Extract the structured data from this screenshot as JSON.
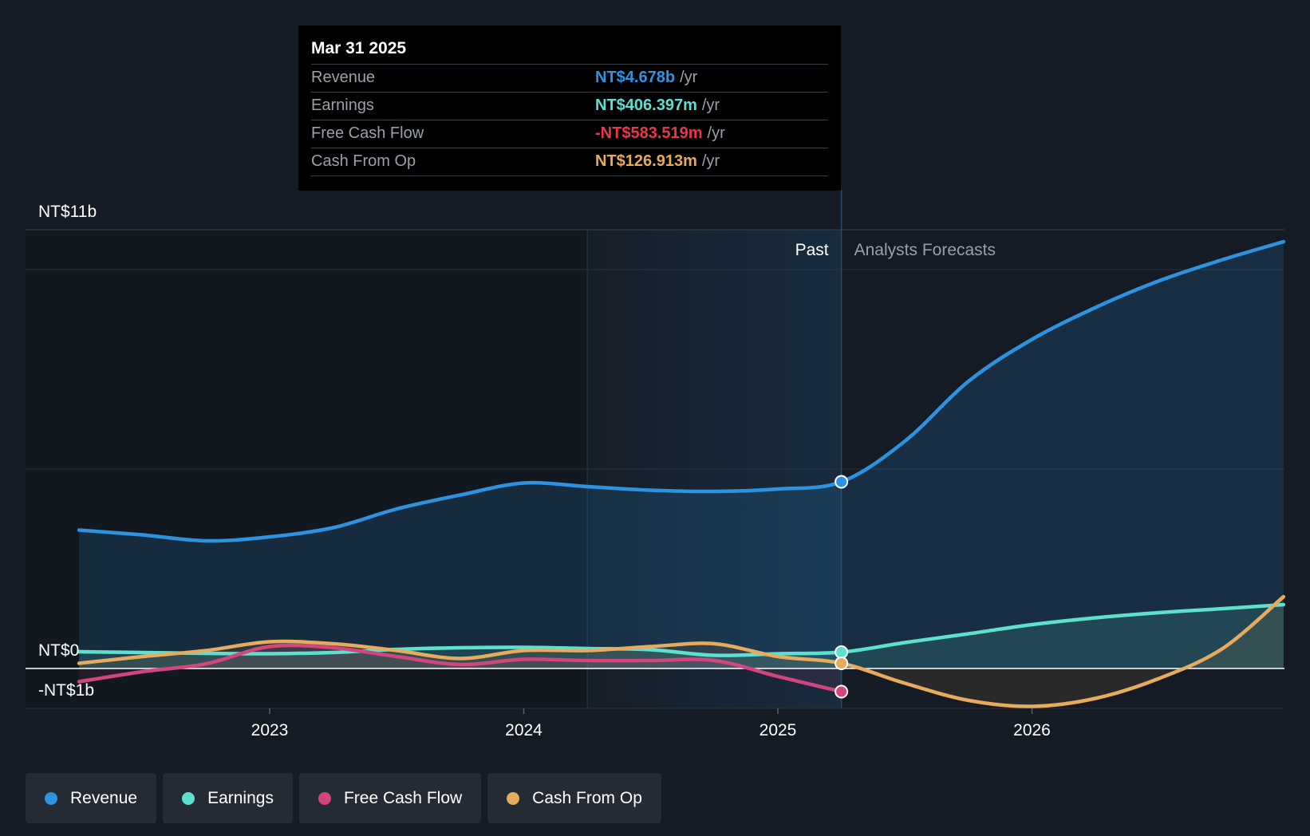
{
  "tooltip": {
    "date": "Mar 31 2025",
    "rows": [
      {
        "label": "Revenue",
        "value": "NT$4.678b",
        "unit": "/yr"
      },
      {
        "label": "Earnings",
        "value": "NT$406.397m",
        "unit": "/yr"
      },
      {
        "label": "Free Cash Flow",
        "value": "-NT$583.519m",
        "unit": "/yr"
      },
      {
        "label": "Cash From Op",
        "value": "NT$126.913m",
        "unit": "/yr"
      }
    ]
  },
  "legend": [
    {
      "label": "Revenue",
      "color": "#2d93e0"
    },
    {
      "label": "Earnings",
      "color": "#5de0cf"
    },
    {
      "label": "Free Cash Flow",
      "color": "#d2457e"
    },
    {
      "label": "Cash From Op",
      "color": "#e6ab5c"
    }
  ],
  "chart_data": {
    "type": "line",
    "title": "",
    "ylabel": "",
    "ylim": [
      -1,
      11
    ],
    "y_tick_labels": [
      {
        "value": 11,
        "label": "NT$11b"
      },
      {
        "value": 0,
        "label": "NT$0"
      },
      {
        "value": -1,
        "label": "-NT$1b"
      }
    ],
    "x_range": [
      2022.2,
      2026.99
    ],
    "x_ticks": [
      {
        "value": 2023,
        "label": "2023"
      },
      {
        "value": 2024,
        "label": "2024"
      },
      {
        "value": 2025,
        "label": "2025"
      },
      {
        "value": 2026,
        "label": "2026"
      }
    ],
    "past_label": "Past",
    "forecast_label": "Analysts Forecasts",
    "past_start": 2024.25,
    "divider": 2025.25,
    "series": [
      {
        "name": "Revenue",
        "color": "#2d93e0",
        "points": [
          [
            2022.25,
            3.47
          ],
          [
            2022.5,
            3.35
          ],
          [
            2022.75,
            3.2
          ],
          [
            2023.0,
            3.3
          ],
          [
            2023.25,
            3.53
          ],
          [
            2023.5,
            4.0
          ],
          [
            2023.75,
            4.35
          ],
          [
            2024.0,
            4.65
          ],
          [
            2024.25,
            4.56
          ],
          [
            2024.5,
            4.47
          ],
          [
            2024.75,
            4.44
          ],
          [
            2025.0,
            4.5
          ],
          [
            2025.25,
            4.68
          ],
          [
            2025.5,
            5.7
          ],
          [
            2025.75,
            7.2
          ],
          [
            2026.0,
            8.25
          ],
          [
            2026.25,
            9.05
          ],
          [
            2026.5,
            9.72
          ],
          [
            2026.75,
            10.25
          ],
          [
            2026.99,
            10.7
          ]
        ]
      },
      {
        "name": "Earnings",
        "color": "#5de0cf",
        "points": [
          [
            2022.25,
            0.42
          ],
          [
            2022.5,
            0.4
          ],
          [
            2022.75,
            0.38
          ],
          [
            2023.0,
            0.37
          ],
          [
            2023.25,
            0.4
          ],
          [
            2023.5,
            0.48
          ],
          [
            2023.75,
            0.52
          ],
          [
            2024.0,
            0.53
          ],
          [
            2024.25,
            0.5
          ],
          [
            2024.5,
            0.47
          ],
          [
            2024.75,
            0.33
          ],
          [
            2025.0,
            0.37
          ],
          [
            2025.25,
            0.41
          ],
          [
            2025.5,
            0.65
          ],
          [
            2025.75,
            0.87
          ],
          [
            2026.0,
            1.1
          ],
          [
            2026.25,
            1.27
          ],
          [
            2026.5,
            1.4
          ],
          [
            2026.75,
            1.5
          ],
          [
            2026.99,
            1.6
          ]
        ]
      },
      {
        "name": "Free Cash Flow",
        "color": "#d2457e",
        "points": [
          [
            2022.25,
            -0.33
          ],
          [
            2022.5,
            -0.08
          ],
          [
            2022.75,
            0.12
          ],
          [
            2023.0,
            0.55
          ],
          [
            2023.25,
            0.52
          ],
          [
            2023.5,
            0.3
          ],
          [
            2023.75,
            0.1
          ],
          [
            2024.0,
            0.23
          ],
          [
            2024.25,
            0.2
          ],
          [
            2024.5,
            0.2
          ],
          [
            2024.75,
            0.2
          ],
          [
            2025.0,
            -0.2
          ],
          [
            2025.25,
            -0.58
          ]
        ]
      },
      {
        "name": "Cash From Op",
        "color": "#e6ab5c",
        "points": [
          [
            2022.25,
            0.13
          ],
          [
            2022.5,
            0.3
          ],
          [
            2022.75,
            0.45
          ],
          [
            2023.0,
            0.67
          ],
          [
            2023.25,
            0.62
          ],
          [
            2023.5,
            0.45
          ],
          [
            2023.75,
            0.25
          ],
          [
            2024.0,
            0.45
          ],
          [
            2024.25,
            0.45
          ],
          [
            2024.5,
            0.55
          ],
          [
            2024.75,
            0.62
          ],
          [
            2025.0,
            0.3
          ],
          [
            2025.25,
            0.13
          ],
          [
            2025.5,
            -0.37
          ],
          [
            2025.75,
            -0.8
          ],
          [
            2026.0,
            -0.95
          ],
          [
            2026.25,
            -0.75
          ],
          [
            2026.5,
            -0.25
          ],
          [
            2026.75,
            0.5
          ],
          [
            2026.99,
            1.8
          ]
        ]
      }
    ]
  }
}
